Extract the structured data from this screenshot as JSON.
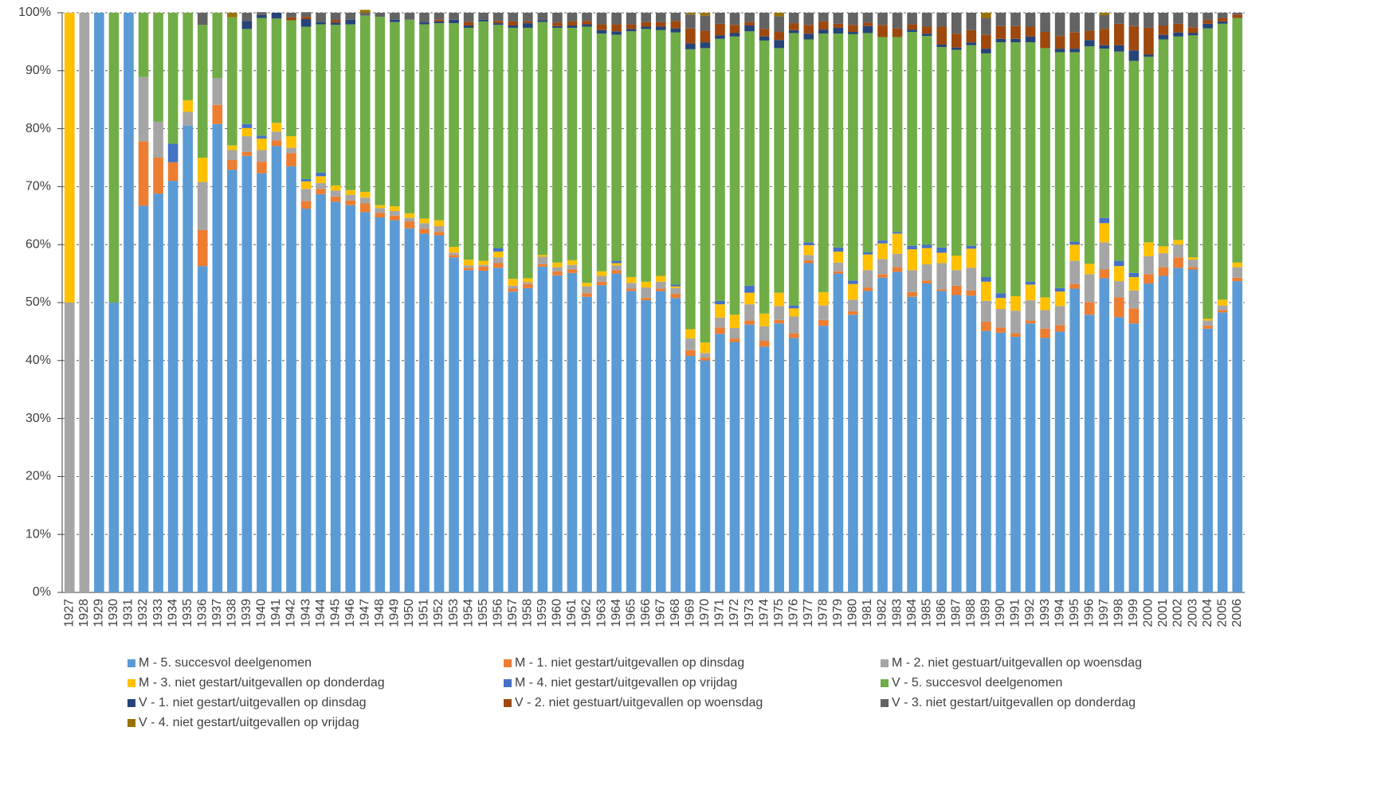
{
  "chart_data": {
    "type": "stacked_bar",
    "categories": [
      "1927",
      "1928",
      "1929",
      "1930",
      "1931",
      "1932",
      "1933",
      "1934",
      "1935",
      "1936",
      "1937",
      "1938",
      "1939",
      "1940",
      "1941",
      "1942",
      "1943",
      "1944",
      "1945",
      "1946",
      "1947",
      "1948",
      "1949",
      "1950",
      "1951",
      "1952",
      "1953",
      "1954",
      "1955",
      "1956",
      "1957",
      "1958",
      "1959",
      "1960",
      "1961",
      "1962",
      "1963",
      "1964",
      "1965",
      "1966",
      "1967",
      "1968",
      "1969",
      "1970",
      "1971",
      "1972",
      "1973",
      "1974",
      "1975",
      "1976",
      "1977",
      "1978",
      "1979",
      "1980",
      "1981",
      "1982",
      "1983",
      "1984",
      "1985",
      "1986",
      "1987",
      "1988",
      "1989",
      "1990",
      "1991",
      "1992",
      "1993",
      "1994",
      "1995",
      "1996",
      "1997",
      "1998",
      "1999",
      "2000",
      "2001",
      "2002",
      "2003",
      "2004",
      "2005",
      "2006"
    ],
    "ylim": [
      0,
      100
    ],
    "yticks": [
      {
        "value": 0,
        "label": "0%"
      },
      {
        "value": 10,
        "label": "10%"
      },
      {
        "value": 20,
        "label": "20%"
      },
      {
        "value": 30,
        "label": "30%"
      },
      {
        "value": 40,
        "label": "40%"
      },
      {
        "value": 50,
        "label": "50%"
      },
      {
        "value": 60,
        "label": "60%"
      },
      {
        "value": 70,
        "label": "70%"
      },
      {
        "value": 80,
        "label": "80%"
      },
      {
        "value": 90,
        "label": "90%"
      },
      {
        "value": 100,
        "label": "100%"
      }
    ],
    "grid": true,
    "legend": "bottom",
    "series": [
      {
        "name": "M - 5. succesvol deelgenomen",
        "color": "#5b9bd5",
        "values": [
          0,
          0,
          100,
          50,
          100,
          66.7,
          68.8,
          71,
          80.5,
          56.3,
          80.8,
          72.9,
          75.3,
          72.3,
          77,
          73.5,
          66.2,
          68.7,
          67.4,
          66.8,
          65.6,
          64.7,
          64.2,
          62.8,
          61.9,
          61.6,
          57.8,
          55.6,
          55.5,
          56,
          51.9,
          52.5,
          56.2,
          54.7,
          55.1,
          51,
          53,
          55,
          52,
          50.4,
          52,
          50.8,
          40.8,
          40,
          44.6,
          43.2,
          46.2,
          42.4,
          46.4,
          43.9,
          56.8,
          46,
          55,
          47.9,
          52,
          54.3,
          55.3,
          51,
          53.3,
          52,
          51.3,
          51.2,
          45.1,
          44.8,
          44.1,
          46.4,
          43.9,
          45,
          52.4,
          47.9,
          54.2,
          47.5,
          46.4,
          53.3,
          54.6,
          56,
          55.7,
          45.5,
          48.3,
          53.7
        ]
      },
      {
        "name": "M - 1. niet gestart/uitgevallen op dinsdag",
        "color": "#ed7d31",
        "values": [
          0,
          0,
          0,
          0,
          0,
          11.1,
          6.2,
          3.2,
          0,
          6.2,
          3.3,
          1.7,
          0.7,
          2,
          1,
          2.3,
          1.3,
          0.9,
          0.9,
          0.8,
          1.5,
          0.8,
          0.8,
          1.2,
          0.8,
          0.6,
          0.4,
          0.4,
          0.7,
          0.8,
          0.5,
          0.7,
          0.4,
          0.7,
          0.6,
          0.6,
          0.6,
          0.6,
          0.4,
          0.4,
          0.4,
          0.7,
          1,
          0.5,
          1.1,
          0.6,
          0.7,
          1,
          0.6,
          0.8,
          0.5,
          1,
          0.4,
          0.6,
          0.6,
          0.6,
          0.8,
          0.8,
          0.5,
          0.3,
          1.6,
          0.9,
          1.6,
          0.9,
          0.6,
          0.5,
          1.6,
          1.1,
          0.8,
          2.2,
          1.5,
          3.4,
          2.6,
          1.6,
          1.5,
          1.8,
          0.4,
          0.5,
          0.4,
          0.6
        ]
      },
      {
        "name": "M - 2. niet gestuart/uitgevallen op woensdag",
        "color": "#a5a5a5",
        "values": [
          50,
          100,
          0,
          0,
          0,
          11.1,
          6.2,
          0,
          2.4,
          8.3,
          4.6,
          1.7,
          2.7,
          2,
          1.5,
          0.9,
          2.1,
          1,
          1,
          1,
          1,
          0.8,
          0.8,
          0.6,
          1,
          1,
          0.4,
          0.4,
          0.3,
          1,
          0.5,
          0.3,
          1.3,
          0.7,
          0.8,
          1.2,
          1,
          0.8,
          1,
          1.8,
          1.2,
          1,
          2,
          0.8,
          1.7,
          1.8,
          2.8,
          2.5,
          2.4,
          2.9,
          0.9,
          2.5,
          1.5,
          2,
          3,
          2.6,
          2.3,
          3.8,
          2.8,
          4.5,
          2.7,
          3.9,
          3.6,
          3.2,
          3.9,
          3.5,
          3.2,
          3.3,
          4,
          4.8,
          4.7,
          2.8,
          3.1,
          3.1,
          2.4,
          2.2,
          1.3,
          0.9,
          0.8,
          1.8
        ]
      },
      {
        "name": "M - 3. niet gestart/uitgevallen op donderdag",
        "color": "#ffc000",
        "values": [
          50,
          0,
          0,
          0,
          0,
          0,
          0,
          0,
          2,
          4.2,
          0,
          0.8,
          1.4,
          2,
          1.5,
          2,
          1.3,
          1.2,
          0.9,
          0.8,
          1,
          0.5,
          0.8,
          0.8,
          0.8,
          1,
          1,
          1,
          0.7,
          1,
          1.2,
          0.7,
          0.3,
          0.8,
          0.8,
          0.6,
          0.8,
          0.4,
          1,
          1,
          1,
          0.3,
          1.6,
          1.8,
          2.3,
          2.3,
          2,
          2.2,
          2.3,
          1.4,
          1.7,
          2.3,
          1.9,
          2.7,
          2.7,
          2.7,
          3.5,
          3.6,
          2.8,
          1.8,
          2.5,
          3.3,
          3.3,
          1.9,
          2.5,
          2.7,
          2.2,
          2.5,
          2.8,
          1.8,
          3.3,
          2.6,
          2.3,
          2.4,
          1.2,
          0.8,
          0.4,
          0.3,
          1,
          0.8
        ]
      },
      {
        "name": "M - 4. niet gestart/uitgevallen op vrijdag",
        "color": "#4472c4",
        "values": [
          0,
          0,
          0,
          0,
          0,
          0,
          0,
          3.2,
          0,
          0,
          0,
          0,
          0.7,
          0.5,
          0,
          0,
          0.4,
          0.6,
          0,
          0,
          0,
          0,
          0,
          0,
          0,
          0,
          0,
          0,
          0,
          0.6,
          0,
          0,
          0,
          0,
          0,
          0,
          0,
          0.4,
          0,
          0,
          0,
          0.3,
          0,
          0,
          0.6,
          0,
          1.2,
          0,
          0,
          0.5,
          0.5,
          0,
          0.7,
          0.6,
          0.4,
          0.5,
          0.3,
          0.6,
          0.6,
          0.9,
          0,
          0.5,
          0.8,
          0.8,
          0,
          0.5,
          0,
          0.6,
          0.5,
          0,
          0.9,
          0.9,
          0.7,
          0,
          0,
          0,
          0,
          0,
          0,
          0
        ]
      },
      {
        "name": "V - 5. succesvol deelgenomen",
        "color": "#70ad47",
        "values": [
          0,
          0,
          0,
          50,
          0,
          11.1,
          18.8,
          22.6,
          15.1,
          22.9,
          11.3,
          22.1,
          16.4,
          20.3,
          18,
          20,
          26.3,
          25.6,
          27.7,
          28.6,
          30.4,
          32.5,
          31.8,
          33.4,
          33.5,
          34,
          38.6,
          40,
          41.3,
          38.5,
          43.3,
          43.2,
          40.2,
          40.5,
          40.1,
          44.2,
          41,
          39,
          42.4,
          43.6,
          42.4,
          43.5,
          48.3,
          50.8,
          45.2,
          48,
          43.9,
          47.1,
          42.2,
          47,
          35,
          44.6,
          36.9,
          42.5,
          37.8,
          35.1,
          33.6,
          36.9,
          36,
          34.6,
          35.5,
          34.6,
          38.6,
          43.3,
          43.8,
          41.3,
          43,
          40.7,
          32.7,
          37.5,
          29.2,
          36.1,
          36.6,
          32,
          35.7,
          35.1,
          38.3,
          50.1,
          47.6,
          42.2
        ]
      },
      {
        "name": "V - 1. niet gestart/uitgevallen op dinsdag",
        "color": "#264478",
        "values": [
          0,
          0,
          0,
          0,
          0,
          0,
          0,
          0,
          0,
          0,
          0,
          0,
          1.4,
          0.5,
          1,
          0,
          1.3,
          0.4,
          0.4,
          0.8,
          0,
          0,
          0.4,
          0,
          0.4,
          0.3,
          0.6,
          0.4,
          0.3,
          0.3,
          0.4,
          0.8,
          0.3,
          0.3,
          0.4,
          0.4,
          0.6,
          0.6,
          0.4,
          0.4,
          0.6,
          0.7,
          1,
          1,
          0.6,
          0.6,
          1,
          0.7,
          1.4,
          0.5,
          1,
          0.7,
          1,
          0.4,
          1.2,
          0,
          0,
          0.4,
          0.4,
          0.4,
          0.4,
          0.5,
          0.8,
          0.6,
          0.6,
          1,
          0,
          0.6,
          0.6,
          1.1,
          0.6,
          1.1,
          1.8,
          0.4,
          0.8,
          0.7,
          0.4,
          0.8,
          0.4,
          0
        ]
      },
      {
        "name": "V - 2. niet gestuart/uitgevallen op woensdag",
        "color": "#9e480e",
        "values": [
          0,
          0,
          0,
          0,
          0,
          0,
          0,
          0,
          0,
          0,
          0,
          0,
          0,
          0,
          0,
          0.5,
          0.4,
          0,
          0.4,
          0,
          0,
          0,
          0,
          0,
          0,
          0.3,
          0,
          0.6,
          0,
          0.4,
          0.7,
          0.3,
          0,
          0.6,
          0.7,
          0.6,
          1,
          1.2,
          0.8,
          0.8,
          0.8,
          1.3,
          2.6,
          2,
          2,
          1.4,
          0.6,
          1.3,
          1.4,
          1.2,
          1.5,
          1.4,
          0.7,
          1.2,
          0.6,
          2.1,
          1.5,
          0.9,
          1.2,
          3.1,
          2.4,
          2.1,
          2.4,
          2.2,
          2.2,
          1.7,
          2.8,
          2.2,
          2.8,
          1.6,
          2.8,
          3.7,
          4.2,
          4.6,
          1.6,
          1.5,
          1,
          0.6,
          0.6,
          0.6
        ]
      },
      {
        "name": "V - 3. niet gestart/uitgevallen op donderdag",
        "color": "#636363",
        "values": [
          0,
          0,
          0,
          0,
          0,
          0,
          0,
          0,
          0,
          2.1,
          0,
          0,
          1.4,
          0.5,
          0,
          0.8,
          0.8,
          1.6,
          1.3,
          1.2,
          0.5,
          0.7,
          1.2,
          1.2,
          1.6,
          1.2,
          1.2,
          1.6,
          1.2,
          1.4,
          1.5,
          1.5,
          1.3,
          1.7,
          1.5,
          1.4,
          2,
          2,
          2,
          1.6,
          1.6,
          1.4,
          2.4,
          2.6,
          1.9,
          2.1,
          1.6,
          2.8,
          2.7,
          1.8,
          2.1,
          1.5,
          1.9,
          2.1,
          1.7,
          2.1,
          2.7,
          2,
          2.4,
          2.4,
          3.6,
          3,
          2.9,
          2.3,
          2.3,
          2.4,
          3.3,
          4,
          3.4,
          3.1,
          2.4,
          1.9,
          2.3,
          2.6,
          2.2,
          1.9,
          2.5,
          1.3,
          0.9,
          0.3
        ]
      },
      {
        "name": "V - 4. niet gestart/uitgevallen op vrijdag",
        "color": "#997300",
        "values": [
          0,
          0,
          0,
          0,
          0,
          0,
          0,
          0,
          0,
          0,
          0,
          0.8,
          0,
          0,
          0,
          0,
          0,
          0,
          0,
          0,
          0.5,
          0,
          0,
          0,
          0,
          0,
          0,
          0,
          0,
          0,
          0,
          0,
          0,
          0,
          0,
          0,
          0,
          0,
          0,
          0,
          0,
          0,
          0.3,
          0.5,
          0,
          0,
          0,
          0,
          0.6,
          0,
          0,
          0,
          0,
          0,
          0,
          0,
          0,
          0,
          0,
          0,
          0,
          0,
          0.9,
          0,
          0,
          0,
          0,
          0,
          0,
          0,
          0.4,
          0,
          0,
          0,
          0,
          0,
          0,
          0,
          0,
          0
        ]
      }
    ]
  }
}
